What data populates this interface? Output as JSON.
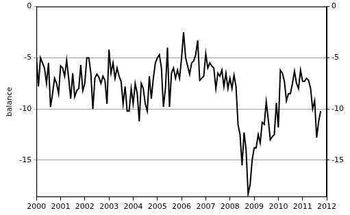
{
  "chart_data": {
    "type": "line",
    "y_label": "balance",
    "color": "#000000",
    "grid": true,
    "xlim": [
      2000,
      2012
    ],
    "xticks": [
      2000,
      2001,
      2002,
      2003,
      2004,
      2005,
      2006,
      2007,
      2008,
      2009,
      2010,
      2011,
      2012
    ],
    "ylim": [
      -18.6,
      0
    ],
    "yticks": [
      -15,
      -10,
      -5,
      0
    ],
    "y2lim": [
      -18.6,
      0
    ],
    "y2ticks": [
      -15,
      -10,
      -5,
      0
    ],
    "x": [
      2000,
      2000.083,
      2000.167,
      2000.25,
      2000.333,
      2000.417,
      2000.5,
      2000.583,
      2000.667,
      2000.75,
      2000.833,
      2000.917,
      2001,
      2001.083,
      2001.167,
      2001.25,
      2001.333,
      2001.417,
      2001.5,
      2001.583,
      2001.667,
      2001.75,
      2001.833,
      2001.917,
      2002,
      2002.083,
      2002.167,
      2002.25,
      2002.333,
      2002.417,
      2002.5,
      2002.583,
      2002.667,
      2002.75,
      2002.833,
      2002.917,
      2003,
      2003.083,
      2003.167,
      2003.25,
      2003.333,
      2003.417,
      2003.5,
      2003.583,
      2003.667,
      2003.75,
      2003.833,
      2003.917,
      2004,
      2004.083,
      2004.167,
      2004.25,
      2004.333,
      2004.417,
      2004.5,
      2004.583,
      2004.667,
      2004.75,
      2004.833,
      2004.917,
      2005,
      2005.083,
      2005.167,
      2005.25,
      2005.333,
      2005.417,
      2005.5,
      2005.583,
      2005.667,
      2005.75,
      2005.833,
      2005.917,
      2006,
      2006.083,
      2006.167,
      2006.25,
      2006.333,
      2006.417,
      2006.5,
      2006.583,
      2006.667,
      2006.75,
      2006.833,
      2006.917,
      2007,
      2007.083,
      2007.167,
      2007.25,
      2007.333,
      2007.417,
      2007.5,
      2007.583,
      2007.667,
      2007.75,
      2007.833,
      2007.917,
      2008,
      2008.083,
      2008.167,
      2008.25,
      2008.333,
      2008.417,
      2008.5,
      2008.583,
      2008.667,
      2008.75,
      2008.833,
      2008.917,
      2009,
      2009.083,
      2009.167,
      2009.25,
      2009.333,
      2009.417,
      2009.5,
      2009.583,
      2009.667,
      2009.75,
      2009.833,
      2009.917,
      2010,
      2010.083,
      2010.167,
      2010.25,
      2010.333,
      2010.417,
      2010.5,
      2010.583,
      2010.667,
      2010.75,
      2010.833,
      2010.917,
      2011,
      2011.083,
      2011.167,
      2011.25,
      2011.333,
      2011.417,
      2011.5,
      2011.583,
      2011.667,
      2011.75
    ],
    "values": [
      -5,
      -7.8,
      -5,
      -5.5,
      -6,
      -7.5,
      -5.5,
      -9.8,
      -8.5,
      -7,
      -7.5,
      -8.5,
      -5.8,
      -6,
      -6.8,
      -5.2,
      -7,
      -9,
      -6.5,
      -8.8,
      -8.2,
      -8,
      -5.7,
      -8.2,
      -7.5,
      -5,
      -5,
      -6.5,
      -10,
      -7,
      -6.6,
      -6.9,
      -7.5,
      -6.8,
      -7.2,
      -9.5,
      -4.2,
      -6.5,
      -5.5,
      -7,
      -6,
      -6.8,
      -7.3,
      -9.5,
      -7.8,
      -10.2,
      -10.2,
      -8,
      -9.5,
      -7.5,
      -8.5,
      -11.2,
      -7.5,
      -8,
      -9.5,
      -10.2,
      -6.8,
      -9,
      -7,
      -5.5,
      -5,
      -4.7,
      -6,
      -9.8,
      -8,
      -4,
      -9.8,
      -6.5,
      -6,
      -7,
      -6.2,
      -7,
      -5,
      -2.5,
      -5,
      -5.8,
      -6.6,
      -5.5,
      -5.3,
      -4.7,
      -3.3,
      -7.2,
      -7,
      -6.8,
      -4.6,
      -6,
      -5.5,
      -5.8,
      -6,
      -8,
      -6.5,
      -6.8,
      -6.2,
      -7.8,
      -6.5,
      -8,
      -7,
      -8,
      -6.7,
      -7.8,
      -11.5,
      -12.5,
      -15.5,
      -12.3,
      -14,
      -18.3,
      -17.4,
      -15,
      -13.8,
      -13.8,
      -12.5,
      -13.3,
      -11.3,
      -11.5,
      -9.3,
      -11,
      -13,
      -12.7,
      -12.5,
      -9.4,
      -11.8,
      -6.2,
      -6.5,
      -7.3,
      -9.2,
      -8.5,
      -8.5,
      -7.5,
      -6.3,
      -7.5,
      -8,
      -6.2,
      -7.3,
      -7.3,
      -7,
      -7.2,
      -8,
      -10,
      -9.2,
      -12.8,
      -11.2,
      -10.2
    ]
  }
}
